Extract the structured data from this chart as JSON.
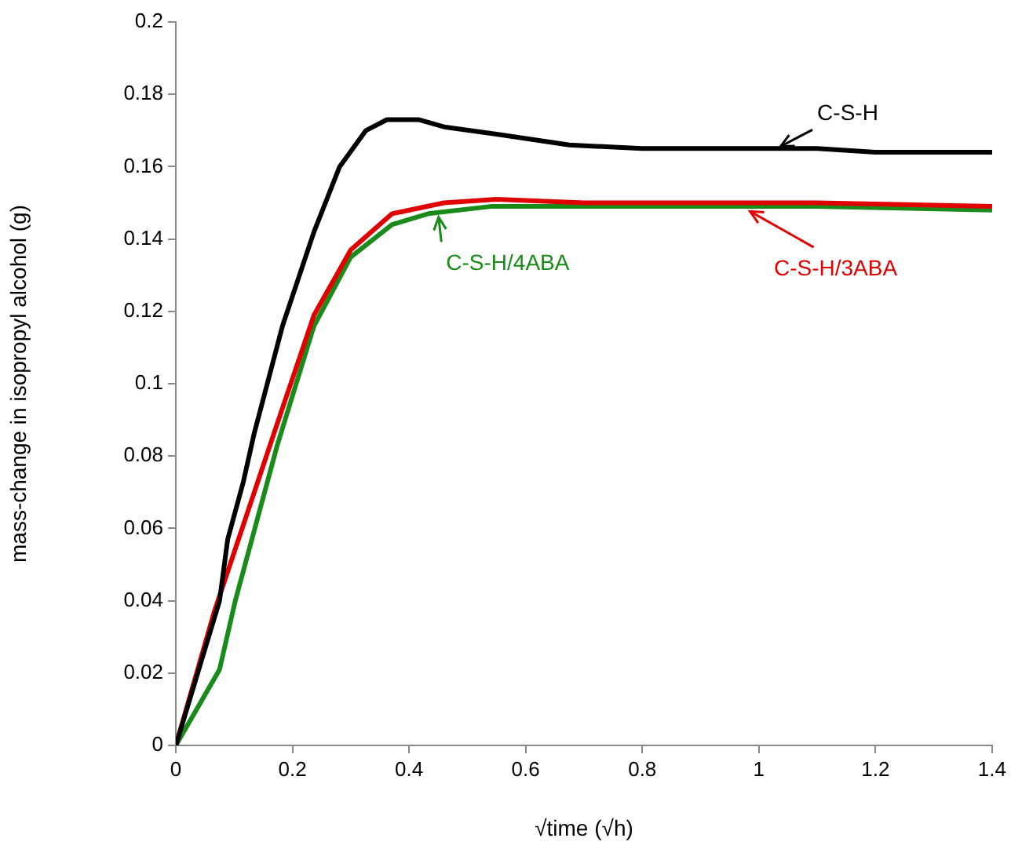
{
  "chart_data": {
    "type": "line",
    "xlabel": "√time (√h)",
    "ylabel": "mass-change in isopropyl alcohol (g)",
    "xlim": [
      0,
      1.4
    ],
    "xticks": [
      0,
      0.2,
      0.4,
      0.6,
      0.8,
      1,
      1.2,
      1.4
    ],
    "ylim": [
      0,
      0.2
    ],
    "yticks": [
      0,
      0.02,
      0.04,
      0.06,
      0.08,
      0.1,
      0.12,
      0.14,
      0.16,
      0.18,
      0.2
    ],
    "grid": false,
    "legend": false,
    "marker": "none",
    "line_style": "solid",
    "series": [
      {
        "color": "#000000",
        "x": [
          0,
          0.075,
          0.089,
          0.116,
          0.134,
          0.183,
          0.237,
          0.281,
          0.326,
          0.362,
          0.416,
          0.46,
          0.55,
          0.675,
          0.8,
          1.0,
          1.1,
          1.2,
          1.4
        ],
        "values": [
          0,
          0.04,
          0.057,
          0.073,
          0.086,
          0.116,
          0.142,
          0.16,
          0.17,
          0.173,
          0.173,
          0.171,
          0.169,
          0.166,
          0.165,
          0.165,
          0.165,
          0.164,
          0.164
        ]
      },
      {
        "color": "#e00000",
        "x": [
          0,
          0.066,
          0.174,
          0.237,
          0.3,
          0.371,
          0.46,
          0.55,
          0.7,
          0.9,
          1.1,
          1.4
        ],
        "values": [
          0,
          0.037,
          0.089,
          0.119,
          0.137,
          0.147,
          0.15,
          0.151,
          0.15,
          0.15,
          0.15,
          0.149
        ]
      },
      {
        "color": "#1a8a1a",
        "x": [
          0,
          0.075,
          0.102,
          0.174,
          0.237,
          0.3,
          0.371,
          0.433,
          0.54,
          0.7,
          0.9,
          1.1,
          1.4
        ],
        "values": [
          0,
          0.021,
          0.04,
          0.083,
          0.116,
          0.135,
          0.144,
          0.147,
          0.149,
          0.149,
          0.149,
          0.149,
          0.148
        ]
      }
    ],
    "annotations": [
      {
        "text": "C-S-H",
        "x": 1.03,
        "y": 0.165
      },
      {
        "text": "C-S-H/3ABA",
        "x": 0.97,
        "y": 0.149
      },
      {
        "text": "C-S-H/4ABA",
        "x": 0.45,
        "y": 0.147
      }
    ]
  }
}
